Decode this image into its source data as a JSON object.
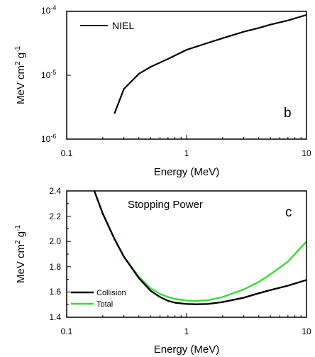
{
  "chart_data": [
    {
      "type": "line",
      "panel_label": "b",
      "xscale": "log",
      "yscale": "log",
      "xlim": [
        0.1,
        10
      ],
      "ylim": [
        1e-06,
        0.0001
      ],
      "xlabel": "Energy (MeV)",
      "ylabel": "MeV cm2 g-1",
      "legend_position": "top-left",
      "x_ticks": [
        "0.1",
        "1",
        "10"
      ],
      "y_ticks": [
        "10-6",
        "10-5",
        "10-4"
      ],
      "series": [
        {
          "name": "NIEL",
          "color": "#000000",
          "points": [
            [
              0.25,
              2.5e-06
            ],
            [
              0.3,
              6.1e-06
            ],
            [
              0.4,
              1.05e-05
            ],
            [
              0.5,
              1.35e-05
            ],
            [
              0.7,
              1.8e-05
            ],
            [
              1,
              2.5e-05
            ],
            [
              1.5,
              3.2e-05
            ],
            [
              2,
              3.8e-05
            ],
            [
              3,
              4.8e-05
            ],
            [
              4,
              5.5e-05
            ],
            [
              5,
              6.2e-05
            ],
            [
              7,
              7.2e-05
            ],
            [
              10,
              8.8e-05
            ]
          ]
        }
      ]
    },
    {
      "type": "line",
      "panel_label": "c",
      "annotation": "Stopping Power",
      "xscale": "log",
      "yscale": "linear",
      "xlim": [
        0.1,
        10
      ],
      "ylim": [
        1.4,
        2.4
      ],
      "xlabel": "Energy (MeV)",
      "ylabel": "MeV cm2 g-1",
      "legend_position": "bottom-left",
      "x_ticks": [
        "0.1",
        "1",
        "10"
      ],
      "y_ticks": [
        "1.4",
        "1.6",
        "1.8",
        "2.0",
        "2.2",
        "2.4"
      ],
      "series": [
        {
          "name": "Collision",
          "color": "#000000",
          "points": [
            [
              0.17,
              2.4
            ],
            [
              0.2,
              2.22
            ],
            [
              0.25,
              2.02
            ],
            [
              0.3,
              1.88
            ],
            [
              0.4,
              1.71
            ],
            [
              0.5,
              1.61
            ],
            [
              0.6,
              1.56
            ],
            [
              0.7,
              1.53
            ],
            [
              0.8,
              1.515
            ],
            [
              1,
              1.505
            ],
            [
              1.2,
              1.503
            ],
            [
              1.5,
              1.505
            ],
            [
              2,
              1.52
            ],
            [
              3,
              1.555
            ],
            [
              4,
              1.59
            ],
            [
              5,
              1.615
            ],
            [
              7,
              1.65
            ],
            [
              10,
              1.695
            ]
          ]
        },
        {
          "name": "Total",
          "color": "#33dd33",
          "points": [
            [
              0.17,
              2.4
            ],
            [
              0.2,
              2.22
            ],
            [
              0.25,
              2.02
            ],
            [
              0.3,
              1.88
            ],
            [
              0.4,
              1.72
            ],
            [
              0.5,
              1.63
            ],
            [
              0.6,
              1.585
            ],
            [
              0.7,
              1.56
            ],
            [
              0.8,
              1.545
            ],
            [
              1,
              1.532
            ],
            [
              1.2,
              1.53
            ],
            [
              1.5,
              1.535
            ],
            [
              2,
              1.56
            ],
            [
              3,
              1.62
            ],
            [
              4,
              1.68
            ],
            [
              5,
              1.74
            ],
            [
              7,
              1.84
            ],
            [
              10,
              2.0
            ]
          ]
        }
      ]
    }
  ]
}
